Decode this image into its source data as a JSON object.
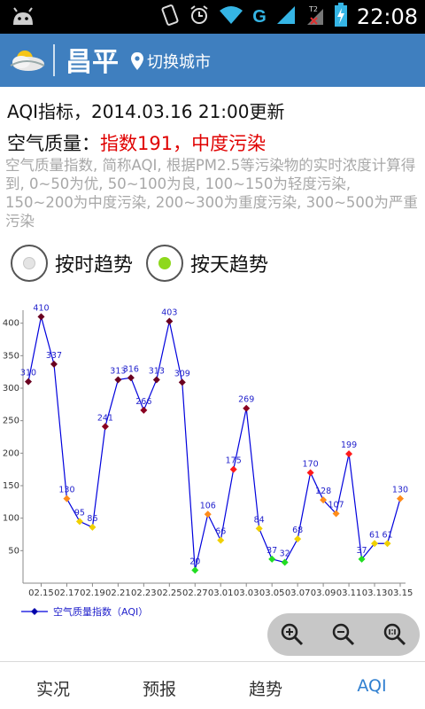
{
  "status_bar": {
    "time": "22:08",
    "network_label": "G",
    "icons": [
      "android-icon",
      "vibrate-icon",
      "alarm-icon",
      "wifi-icon",
      "signal-icon",
      "signal-no-sim-icon",
      "battery-charging-icon"
    ]
  },
  "header": {
    "city": "昌平",
    "switch_city": "切换城市",
    "logo": "weather-logo-icon",
    "background": "#3f7fbf"
  },
  "info": {
    "update_line": "AQI指标，2014.03.16 21:00更新",
    "quality_label": "空气质量：",
    "quality_value": "指数191，中度污染",
    "description": "空气质量指数, 简称AQI, 根据PM2.5等污染物的实时浓度计算得到, 0~50为优, 50~100为良, 100~150为轻度污染, 150~200为中度污染, 200~300为重度污染, 300~500为严重污染"
  },
  "trend_mode": {
    "hourly_label": "按时趋势",
    "daily_label": "按天趋势",
    "selected": "daily",
    "selected_color": "#8ed81c"
  },
  "chart_data": {
    "type": "line",
    "series": [
      {
        "name": "空气质量指数（AQI）",
        "color": "#0000dd",
        "values": [
          310,
          410,
          337,
          130,
          95,
          86,
          241,
          313,
          316,
          266,
          313,
          403,
          309,
          20,
          106,
          66,
          175,
          269,
          84,
          37,
          32,
          68,
          170,
          128,
          107,
          199,
          37,
          61,
          61,
          130
        ]
      }
    ],
    "x_tick_labels": [
      "02.15",
      "02.17",
      "02.19",
      "02.21",
      "02.23",
      "02.25",
      "02.27",
      "03.01",
      "03.03",
      "03.05",
      "03.07",
      "03.09",
      "03.11",
      "03.13",
      "03.15"
    ],
    "y_ticks": [
      50,
      100,
      150,
      200,
      250,
      300,
      350,
      400
    ],
    "ylim": [
      0,
      420
    ],
    "point_colors": {
      "good": "#22dd22",
      "moderate": "#f0d000",
      "light": "#ff8c1a",
      "medium": "#ff1a1a",
      "heavy": "#8a0020",
      "severe": "#6a0020"
    },
    "legend": "bottom-left"
  },
  "zoom_controls": [
    "zoom-in-icon",
    "zoom-out-icon",
    "zoom-reset-icon"
  ],
  "tabs": [
    {
      "label": "实况",
      "active": false
    },
    {
      "label": "预报",
      "active": false
    },
    {
      "label": "趋势",
      "active": false
    },
    {
      "label": "AQI",
      "active": true
    }
  ]
}
